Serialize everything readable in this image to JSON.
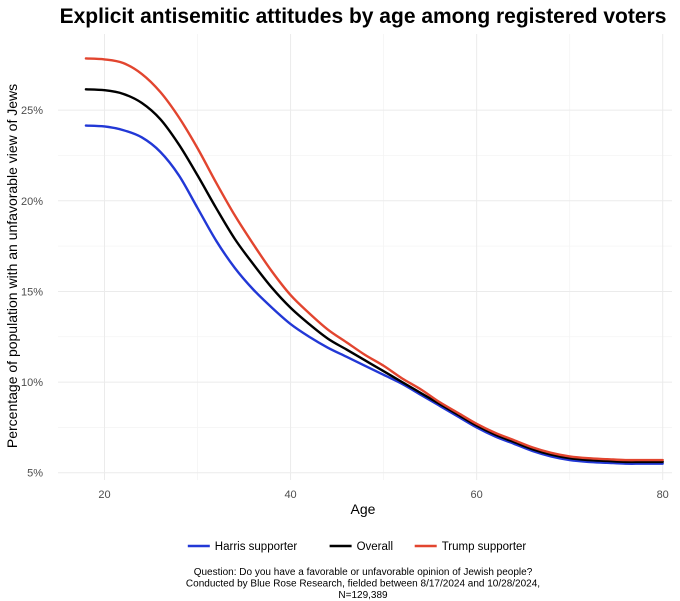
{
  "chart_data": {
    "type": "line",
    "title": "Explicit antisemitic attitudes by age among registered voters",
    "xlabel": "Age",
    "ylabel": "Percentage of population with an unfavorable view of Jews",
    "xlim": [
      15,
      81
    ],
    "ylim": [
      4.6,
      29.2
    ],
    "x_ticks": [
      20,
      40,
      60,
      80
    ],
    "y_ticks": [
      5,
      10,
      15,
      20,
      25
    ],
    "y_tick_labels": [
      "5%",
      "10%",
      "15%",
      "20%",
      "25%"
    ],
    "grid": true,
    "legend_position": "bottom",
    "x": [
      18,
      20,
      22,
      24,
      26,
      28,
      30,
      32,
      34,
      36,
      38,
      40,
      42,
      44,
      46,
      48,
      50,
      52,
      54,
      56,
      58,
      60,
      62,
      64,
      66,
      68,
      70,
      72,
      74,
      76,
      78,
      80
    ],
    "series": [
      {
        "name": "Harris supporter",
        "color": "#2238d6",
        "values": [
          24.15,
          24.1,
          23.9,
          23.5,
          22.7,
          21.4,
          19.6,
          17.8,
          16.3,
          15.1,
          14.1,
          13.2,
          12.5,
          11.9,
          11.4,
          10.9,
          10.4,
          9.9,
          9.3,
          8.7,
          8.1,
          7.5,
          7.0,
          6.6,
          6.2,
          5.9,
          5.7,
          5.6,
          5.55,
          5.5,
          5.5,
          5.5
        ]
      },
      {
        "name": "Overall",
        "color": "#000000",
        "values": [
          26.15,
          26.1,
          25.9,
          25.4,
          24.5,
          23.1,
          21.4,
          19.6,
          17.9,
          16.5,
          15.2,
          14.1,
          13.2,
          12.4,
          11.8,
          11.2,
          10.6,
          10.0,
          9.4,
          8.8,
          8.2,
          7.6,
          7.1,
          6.7,
          6.3,
          6.0,
          5.8,
          5.7,
          5.65,
          5.6,
          5.6,
          5.6
        ]
      },
      {
        "name": "Trump supporter",
        "color": "#e2452f",
        "values": [
          27.85,
          27.8,
          27.6,
          27.0,
          26.0,
          24.6,
          22.9,
          21.0,
          19.2,
          17.6,
          16.1,
          14.8,
          13.8,
          12.9,
          12.2,
          11.5,
          10.9,
          10.2,
          9.6,
          8.9,
          8.3,
          7.7,
          7.2,
          6.8,
          6.4,
          6.1,
          5.9,
          5.8,
          5.75,
          5.7,
          5.7,
          5.7
        ]
      }
    ],
    "caption_lines": [
      "Question: Do you have a favorable or unfavorable opinion of Jewish people?",
      "Conducted by Blue Rose Research, fielded between 8/17/2024 and 10/28/2024,",
      "N=129,389"
    ]
  }
}
